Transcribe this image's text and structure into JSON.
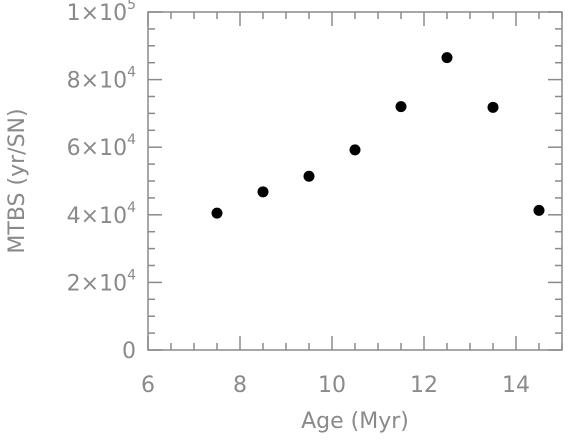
{
  "chart_data": {
    "type": "scatter",
    "xlabel": "Age (Myr)",
    "ylabel": "MTBS (yr/SN)",
    "xlim": [
      6,
      15
    ],
    "ylim": [
      0,
      100000
    ],
    "x_ticks": [
      6,
      8,
      10,
      12,
      14
    ],
    "y_ticks": [
      {
        "value": 0,
        "mantissa": "0",
        "base": "",
        "exp": ""
      },
      {
        "value": 20000,
        "mantissa": "2",
        "base": "×10",
        "exp": "4"
      },
      {
        "value": 40000,
        "mantissa": "4",
        "base": "×10",
        "exp": "4"
      },
      {
        "value": 60000,
        "mantissa": "6",
        "base": "×10",
        "exp": "4"
      },
      {
        "value": 80000,
        "mantissa": "8",
        "base": "×10",
        "exp": "4"
      },
      {
        "value": 100000,
        "mantissa": "1",
        "base": "×10",
        "exp": "5"
      }
    ],
    "points": [
      {
        "x": 7.5,
        "y": 40500
      },
      {
        "x": 8.5,
        "y": 46800
      },
      {
        "x": 9.5,
        "y": 51400
      },
      {
        "x": 10.5,
        "y": 59200
      },
      {
        "x": 11.5,
        "y": 72000
      },
      {
        "x": 12.5,
        "y": 86500
      },
      {
        "x": 13.5,
        "y": 71800
      },
      {
        "x": 14.5,
        "y": 41300
      }
    ],
    "grid": false,
    "legend": "none",
    "colors": {
      "axis": "#8a8a8a",
      "marker": "#000000"
    }
  }
}
